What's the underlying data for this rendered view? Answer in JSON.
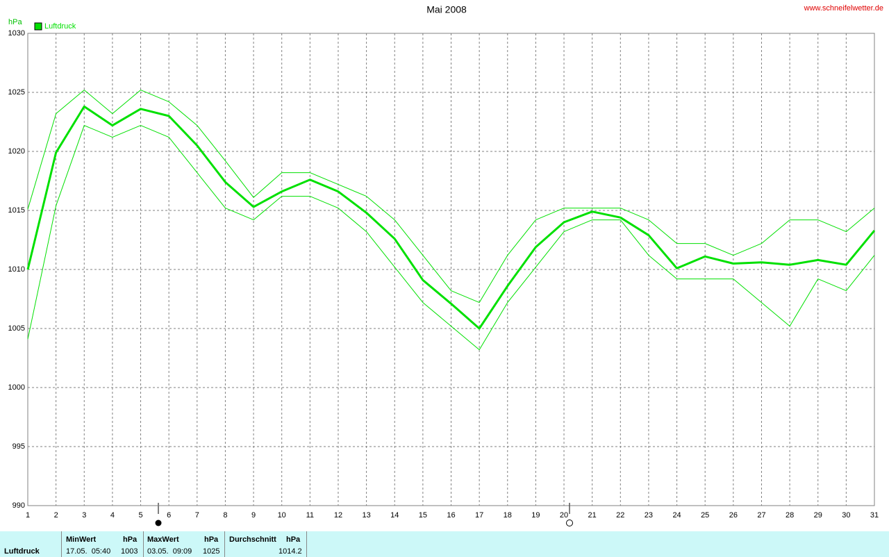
{
  "chart_data": {
    "type": "line",
    "title": "Mai 2008",
    "source": "www.schneifelwetter.de",
    "y_label": "hPa",
    "x": [
      1,
      2,
      3,
      4,
      5,
      6,
      7,
      8,
      9,
      10,
      11,
      12,
      13,
      14,
      15,
      16,
      17,
      18,
      19,
      20,
      21,
      22,
      23,
      24,
      25,
      26,
      27,
      28,
      29,
      30,
      31
    ],
    "xlim": [
      1,
      31
    ],
    "xticks": [
      1,
      2,
      3,
      4,
      5,
      6,
      7,
      8,
      9,
      10,
      11,
      12,
      13,
      14,
      15,
      16,
      17,
      18,
      19,
      20,
      21,
      22,
      23,
      24,
      25,
      26,
      27,
      28,
      29,
      30,
      31
    ],
    "ylim": [
      990,
      1030
    ],
    "yticks": [
      990,
      995,
      1000,
      1005,
      1010,
      1015,
      1020,
      1025,
      1030
    ],
    "grid": true,
    "series": [
      {
        "name": "Luftdruck",
        "color": "#00e000",
        "values": [
          1010.0,
          1019.9,
          1023.8,
          1022.2,
          1023.6,
          1023.0,
          1020.5,
          1017.4,
          1015.3,
          1016.6,
          1017.6,
          1016.6,
          1014.8,
          1012.6,
          1009.1,
          1007.1,
          1005.0,
          1008.6,
          1011.9,
          1014.0,
          1014.9,
          1014.4,
          1012.9,
          1010.1,
          1011.1,
          1010.5,
          1010.6,
          1010.4,
          1010.8,
          1010.4,
          1013.3
        ]
      },
      {
        "color": "#00e000",
        "values": [
          1015.1,
          1023.2,
          1025.2,
          1023.2,
          1025.2,
          1024.2,
          1022.2,
          1019.2,
          1016.1,
          1018.2,
          1018.2,
          1017.2,
          1016.2,
          1014.2,
          1011.2,
          1008.2,
          1007.2,
          1011.2,
          1014.2,
          1015.2,
          1015.2,
          1015.2,
          1014.2,
          1012.2,
          1012.2,
          1011.2,
          1012.2,
          1014.2,
          1014.2,
          1013.2,
          1015.2
        ]
      },
      {
        "color": "#00e000",
        "values": [
          1004.1,
          1015.4,
          1022.2,
          1021.2,
          1022.2,
          1021.2,
          1018.2,
          1015.2,
          1014.2,
          1016.2,
          1016.2,
          1015.2,
          1013.2,
          1010.2,
          1007.2,
          1005.2,
          1003.2,
          1007.2,
          1010.2,
          1013.2,
          1014.2,
          1014.2,
          1011.2,
          1009.2,
          1009.2,
          1009.2,
          1007.2,
          1005.2,
          1009.2,
          1008.2,
          1011.2
        ]
      }
    ]
  },
  "footer": {
    "label": "Luftdruck",
    "min": {
      "header": "MinWert",
      "unit": "hPa",
      "time": "17.05.  05:40",
      "value": "1003"
    },
    "max": {
      "header": "MaxWert",
      "unit": "hPa",
      "time": "03.05.  09:09",
      "value": "1025"
    },
    "avg": {
      "header": "Durchschnitt",
      "unit": "hPa",
      "value": "1014.2"
    }
  }
}
